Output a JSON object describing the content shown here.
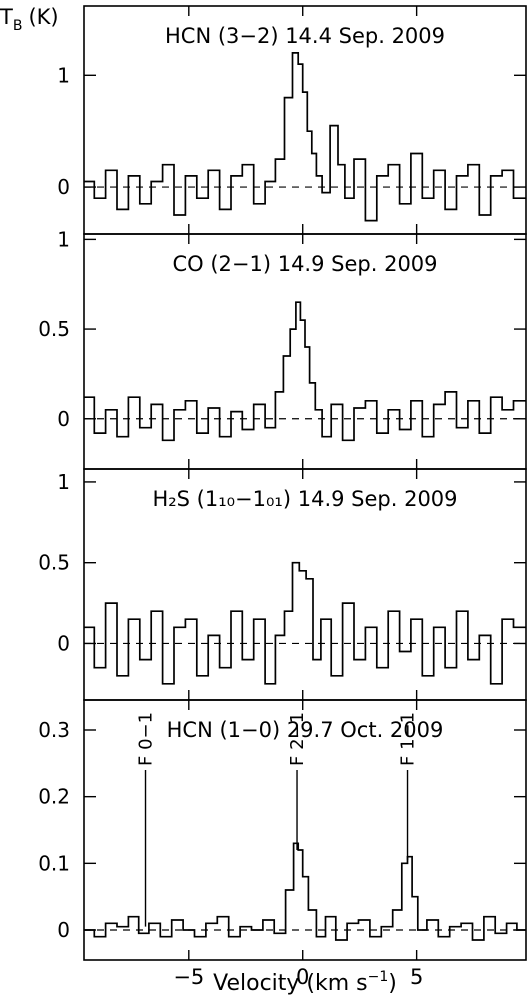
{
  "figure": {
    "ylabel_main": "T",
    "ylabel_sub": "B",
    "ylabel_unit": "(K)",
    "xlabel_main": "Velocity (km s",
    "xlabel_sup": "−1",
    "xlabel_close": ")",
    "line_color": "#000000",
    "background": "#ffffff"
  },
  "chart_data": [
    {
      "type": "line",
      "title": "HCN (3−2)   14.4 Sep. 2009",
      "xlim": [
        -9.6,
        9.8
      ],
      "ylim": [
        -0.42,
        1.62
      ],
      "yticks": [
        0,
        1
      ],
      "ytick_labels": [
        "0",
        "1"
      ],
      "baseline": 0,
      "series": [
        {
          "x": [
            -9.4,
            -8.9,
            -8.4,
            -7.9,
            -7.4,
            -6.9,
            -6.4,
            -5.9,
            -5.4,
            -4.9,
            -4.4,
            -3.9,
            -3.4,
            -2.9,
            -2.4,
            -1.9,
            -1.4,
            -1.0,
            -0.6,
            -0.3,
            -0.1,
            0.1,
            0.3,
            0.5,
            0.7,
            1.0,
            1.4,
            1.7,
            2.0,
            2.5,
            3.0,
            3.5,
            4.0,
            4.5,
            5.0,
            5.5,
            6.0,
            6.5,
            7.0,
            7.5,
            8.0,
            8.5,
            9.0,
            9.5
          ],
          "y": [
            0.05,
            -0.1,
            0.15,
            -0.2,
            0.1,
            -0.15,
            0.05,
            0.2,
            -0.25,
            0.1,
            -0.1,
            0.15,
            -0.2,
            0.1,
            0.2,
            -0.15,
            0.05,
            0.25,
            0.8,
            1.2,
            1.1,
            0.85,
            0.5,
            0.3,
            0.1,
            -0.05,
            0.55,
            0.2,
            -0.1,
            0.25,
            -0.3,
            0.1,
            0.2,
            -0.15,
            0.3,
            -0.1,
            0.15,
            -0.2,
            0.1,
            0.2,
            -0.25,
            0.1,
            0.15,
            -0.1
          ]
        }
      ],
      "markers": []
    },
    {
      "type": "line",
      "title": "CO (2−1)   14.9 Sep. 2009",
      "xlim": [
        -9.6,
        9.8
      ],
      "ylim": [
        -0.28,
        1.03
      ],
      "yticks": [
        0,
        0.5,
        1
      ],
      "ytick_labels": [
        "0",
        "0.5",
        "1"
      ],
      "baseline": 0,
      "series": [
        {
          "x": [
            -9.4,
            -8.9,
            -8.4,
            -7.9,
            -7.4,
            -6.9,
            -6.4,
            -5.9,
            -5.4,
            -4.9,
            -4.4,
            -3.9,
            -3.4,
            -2.9,
            -2.4,
            -1.9,
            -1.4,
            -1.0,
            -0.7,
            -0.4,
            -0.2,
            0.0,
            0.2,
            0.4,
            0.7,
            1.0,
            1.5,
            2.0,
            2.5,
            3.0,
            3.5,
            4.0,
            4.5,
            5.0,
            5.5,
            6.0,
            6.5,
            7.0,
            7.5,
            8.0,
            8.5,
            9.0,
            9.5
          ],
          "y": [
            0.12,
            -0.08,
            0.05,
            -0.1,
            0.12,
            -0.05,
            0.08,
            -0.12,
            0.05,
            0.1,
            -0.08,
            0.06,
            -0.1,
            0.04,
            -0.06,
            0.08,
            -0.05,
            0.15,
            0.35,
            0.5,
            0.65,
            0.55,
            0.4,
            0.2,
            0.05,
            -0.1,
            0.08,
            -0.12,
            0.06,
            0.1,
            -0.08,
            0.05,
            -0.06,
            0.1,
            -0.1,
            0.08,
            0.15,
            -0.05,
            0.1,
            -0.08,
            0.12,
            0.05,
            0.1
          ]
        }
      ],
      "markers": []
    },
    {
      "type": "line",
      "title": "H₂S (1₁₀−1₀₁) 14.9 Sep. 2009",
      "xlim": [
        -9.6,
        9.8
      ],
      "ylim": [
        -0.35,
        1.08
      ],
      "yticks": [
        0,
        0.5,
        1
      ],
      "ytick_labels": [
        "0",
        "0.5",
        "1"
      ],
      "baseline": 0,
      "series": [
        {
          "x": [
            -9.4,
            -8.9,
            -8.4,
            -7.9,
            -7.4,
            -6.9,
            -6.4,
            -5.9,
            -5.4,
            -4.9,
            -4.4,
            -3.9,
            -3.4,
            -2.9,
            -2.4,
            -1.9,
            -1.4,
            -1.0,
            -0.6,
            -0.3,
            0.0,
            0.3,
            0.6,
            1.0,
            1.5,
            2.0,
            2.5,
            3.0,
            3.5,
            4.0,
            4.5,
            5.0,
            5.5,
            6.0,
            6.5,
            7.0,
            7.5,
            8.0,
            8.5,
            9.0,
            9.5
          ],
          "y": [
            0.1,
            -0.15,
            0.25,
            -0.2,
            0.15,
            -0.1,
            0.2,
            -0.25,
            0.1,
            0.15,
            -0.2,
            0.05,
            -0.15,
            0.2,
            -0.1,
            0.15,
            -0.25,
            0.05,
            0.2,
            0.5,
            0.45,
            0.4,
            -0.1,
            0.15,
            -0.2,
            0.25,
            -0.1,
            0.1,
            -0.15,
            0.2,
            -0.05,
            0.15,
            -0.2,
            0.1,
            -0.15,
            0.2,
            -0.1,
            0.05,
            -0.25,
            0.15,
            0.1
          ]
        }
      ],
      "markers": []
    },
    {
      "type": "line",
      "title": "HCN (1−0)   29.7 Oct. 2009",
      "xlim": [
        -9.6,
        9.8
      ],
      "ylim": [
        -0.045,
        0.345
      ],
      "yticks": [
        0,
        0.1,
        0.2,
        0.3
      ],
      "ytick_labels": [
        "0",
        "0.1",
        "0.2",
        "0.3"
      ],
      "baseline": 0,
      "series": [
        {
          "x": [
            -9.4,
            -8.9,
            -8.4,
            -7.9,
            -7.4,
            -7.0,
            -6.5,
            -6.0,
            -5.5,
            -5.0,
            -4.5,
            -4.0,
            -3.5,
            -3.0,
            -2.5,
            -2.0,
            -1.5,
            -1.0,
            -0.5,
            -0.3,
            -0.1,
            0.1,
            0.4,
            0.8,
            1.2,
            1.7,
            2.2,
            2.7,
            3.2,
            3.7,
            4.2,
            4.5,
            4.7,
            4.9,
            5.2,
            5.7,
            6.2,
            6.7,
            7.2,
            7.7,
            8.2,
            8.7,
            9.2,
            9.6
          ],
          "y": [
            0.0,
            -0.01,
            0.01,
            0.005,
            0.02,
            -0.005,
            0.01,
            -0.01,
            0.015,
            0.0,
            -0.01,
            0.01,
            0.02,
            -0.01,
            0.005,
            0.0,
            0.015,
            -0.005,
            0.06,
            0.13,
            0.12,
            0.08,
            0.03,
            -0.01,
            0.02,
            -0.015,
            0.01,
            0.015,
            -0.01,
            0.005,
            0.03,
            0.1,
            0.11,
            0.05,
            0.0,
            0.015,
            -0.01,
            0.005,
            0.01,
            -0.015,
            0.02,
            -0.005,
            0.01,
            0.0
          ]
        }
      ],
      "markers": [
        {
          "x": -6.9,
          "y_top": 0.24,
          "y_bottom": 0.005,
          "label": "F 0−1"
        },
        {
          "x": -0.25,
          "y_top": 0.24,
          "y_bottom": 0.12,
          "label": "F 2−1"
        },
        {
          "x": 4.6,
          "y_top": 0.24,
          "y_bottom": 0.105,
          "label": "F 1−1"
        }
      ]
    }
  ],
  "xaxis": {
    "ticks": [
      -5,
      0,
      5
    ],
    "tick_labels": [
      "−5",
      "0",
      "5"
    ]
  }
}
